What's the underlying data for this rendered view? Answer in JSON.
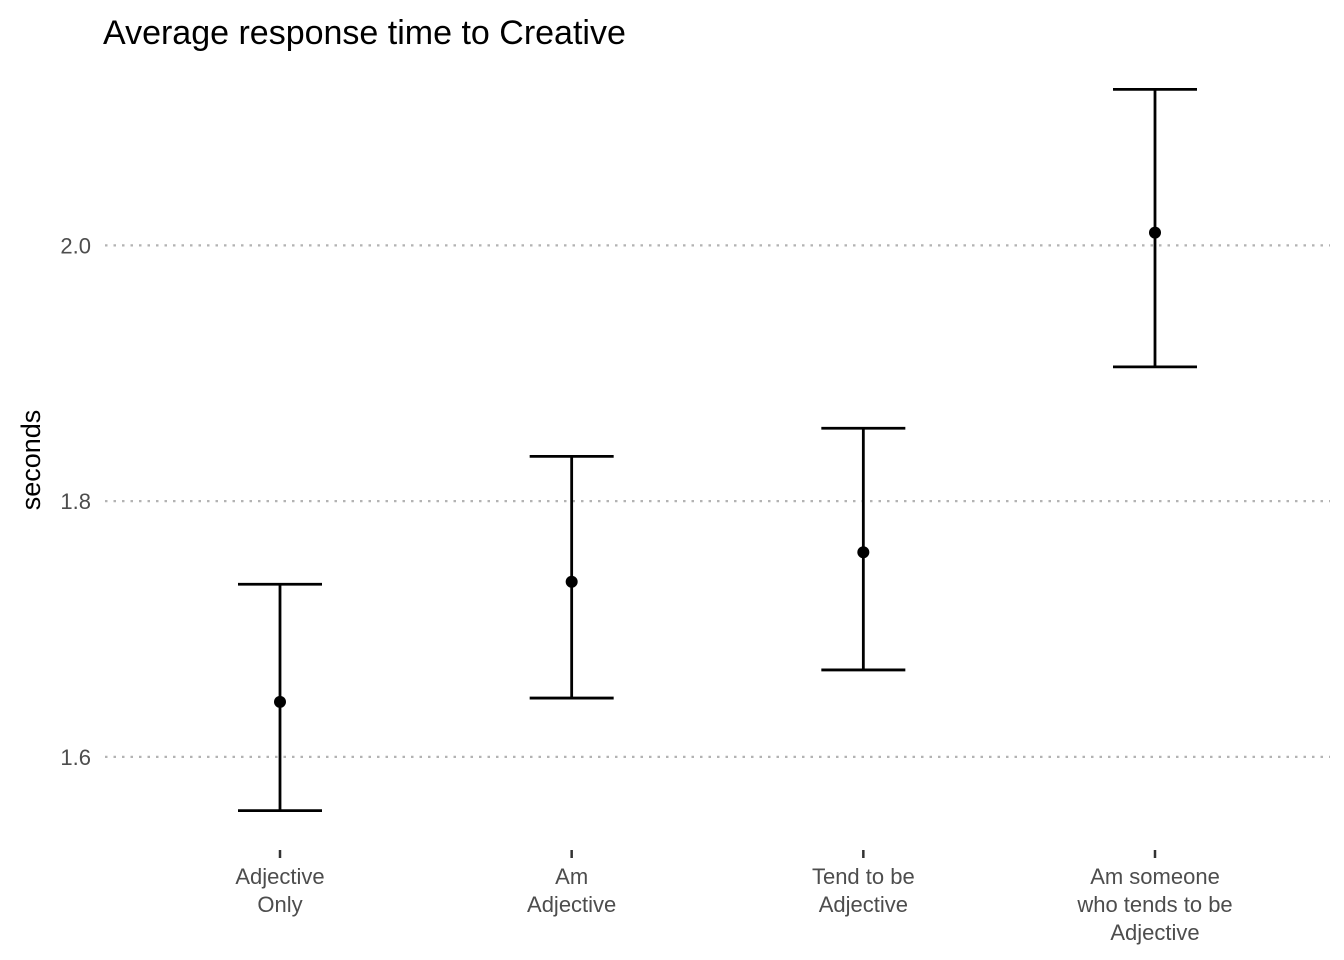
{
  "chart_data": {
    "type": "errorbar",
    "title": "Average response time to Creative",
    "xlabel": "",
    "ylabel": "seconds",
    "categories": [
      [
        "Adjective",
        "Only"
      ],
      [
        "Am",
        "Adjective"
      ],
      [
        "Tend to be",
        "Adjective"
      ],
      [
        "Am someone",
        "who tends to be",
        "Adjective"
      ]
    ],
    "values": [
      1.643,
      1.737,
      1.76,
      2.01
    ],
    "lower": [
      1.558,
      1.646,
      1.668,
      1.905
    ],
    "upper": [
      1.735,
      1.835,
      1.857,
      2.122
    ],
    "yticks": [
      1.6,
      1.8,
      2.0
    ],
    "ytick_labels": [
      "1.6",
      "1.8",
      "2.0"
    ],
    "ylim": [
      1.535,
      2.145
    ],
    "grid": "horizontal dotted",
    "legend": "none"
  }
}
